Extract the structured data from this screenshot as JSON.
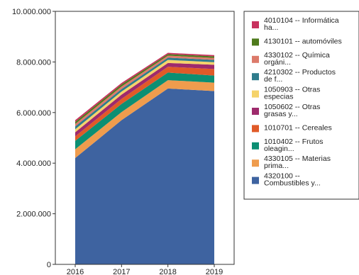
{
  "chart_data": {
    "type": "area",
    "stacked": true,
    "categories": [
      "2016",
      "2017",
      "2018",
      "2019"
    ],
    "ylim": [
      0,
      10000000
    ],
    "y_ticks": [
      0,
      2000000,
      4000000,
      6000000,
      8000000,
      10000000
    ],
    "y_tick_labels": [
      "0",
      "2.000.000",
      "4.000.000",
      "6.000.000",
      "8.000.000",
      "10.000.000"
    ],
    "grid": false,
    "legend_position": "right",
    "series": [
      {
        "name": "4320100 -- Combustibles y...",
        "color": "#3e63a0",
        "values": [
          4200000,
          5700000,
          6950000,
          6850000
        ]
      },
      {
        "name": "4330105 -- Materias prima...",
        "color": "#ef9c4d",
        "values": [
          350000,
          320000,
          330000,
          330000
        ]
      },
      {
        "name": "1010402 -- Frutos oleagin...",
        "color": "#0c8f73",
        "values": [
          330000,
          320000,
          300000,
          280000
        ]
      },
      {
        "name": "1010701 -- Cereales",
        "color": "#e05a28",
        "values": [
          180000,
          200000,
          230000,
          260000
        ]
      },
      {
        "name": "1050602 -- Otras grasas y...",
        "color": "#9e2a6c",
        "values": [
          160000,
          170000,
          150000,
          170000
        ]
      },
      {
        "name": "1050903 -- Otras especias",
        "color": "#f5d36a",
        "values": [
          120000,
          120000,
          120000,
          100000
        ]
      },
      {
        "name": "4210302 -- Productos de f...",
        "color": "#2f7c8c",
        "values": [
          110000,
          100000,
          90000,
          90000
        ]
      },
      {
        "name": "4330102 -- Química orgáni...",
        "color": "#dc7a6a",
        "values": [
          100000,
          100000,
          80000,
          80000
        ]
      },
      {
        "name": "4130101 -- automóviles",
        "color": "#4e7a1c",
        "values": [
          80000,
          80000,
          60000,
          60000
        ]
      },
      {
        "name": "4010104 -- Informática ha...",
        "color": "#c8315e",
        "values": [
          70000,
          60000,
          50000,
          50000
        ]
      }
    ]
  }
}
